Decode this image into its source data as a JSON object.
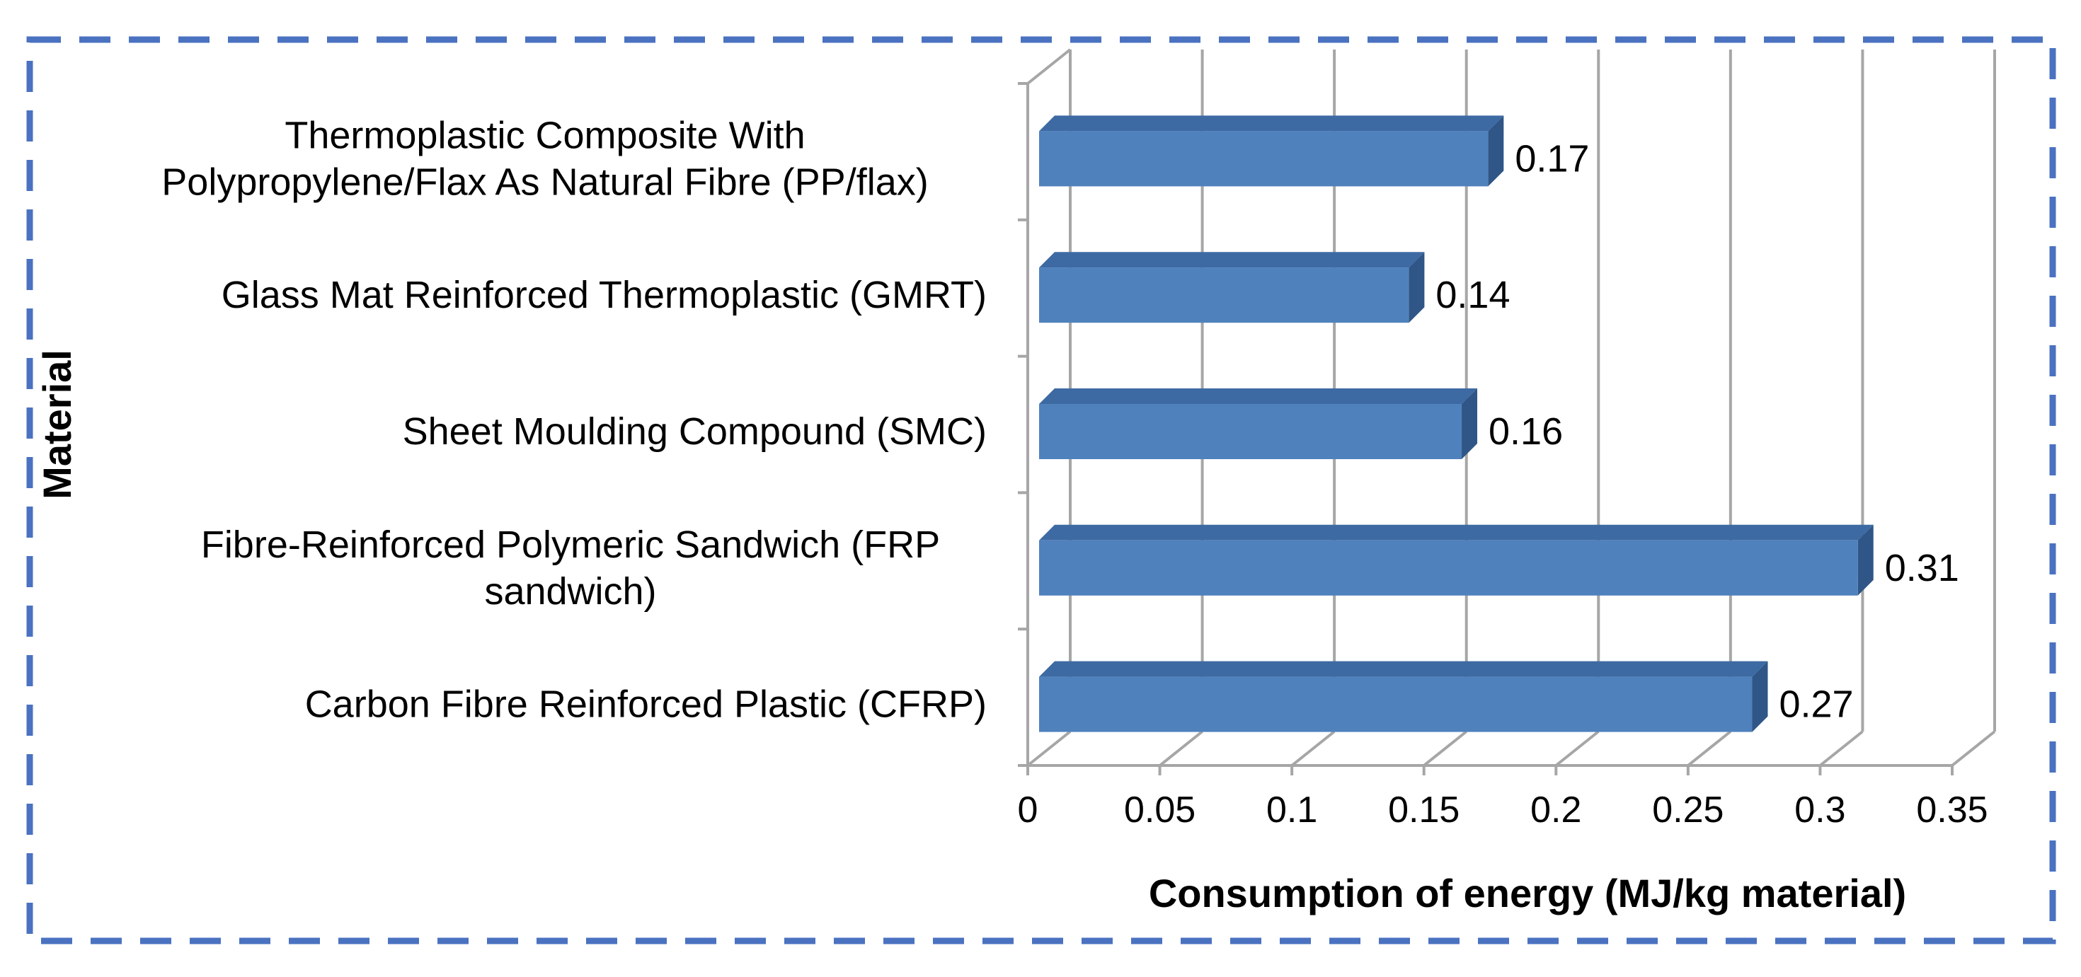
{
  "chart_data": {
    "type": "bar",
    "orientation": "horizontal",
    "style": "3d",
    "title": "",
    "xlabel": "Consumption of energy (MJ/kg material)",
    "ylabel": "Material",
    "xlim": [
      0,
      0.35
    ],
    "xticks": [
      "0",
      "0.05",
      "0.1",
      "0.15",
      "0.2",
      "0.25",
      "0.3",
      "0.35"
    ],
    "xtick_values": [
      0,
      0.05,
      0.1,
      0.15,
      0.2,
      0.25,
      0.3,
      0.35
    ],
    "grid": true,
    "legend": "none",
    "categories": [
      [
        "Thermoplastic Composite With",
        "Polypropylene/Flax As Natural Fibre (PP/flax)"
      ],
      [
        "Glass Mat Reinforced Thermoplastic (GMRT)"
      ],
      [
        "Sheet Moulding Compound (SMC)"
      ],
      [
        "Fibre-Reinforced Polymeric Sandwich (FRP",
        "sandwich)"
      ],
      [
        "Carbon Fibre Reinforced Plastic (CFRP)"
      ]
    ],
    "values": [
      0.17,
      0.14,
      0.16,
      0.31,
      0.27
    ],
    "value_labels": [
      "0.17",
      "0.14",
      "0.16",
      "0.31",
      "0.27"
    ]
  },
  "colors": {
    "bar_front": "#4f81bd",
    "bar_top": "#3d6aa3",
    "bar_side": "#2f5686",
    "grid": "#a6a6a6",
    "frame": "#4a72c0",
    "text": "#000000"
  }
}
